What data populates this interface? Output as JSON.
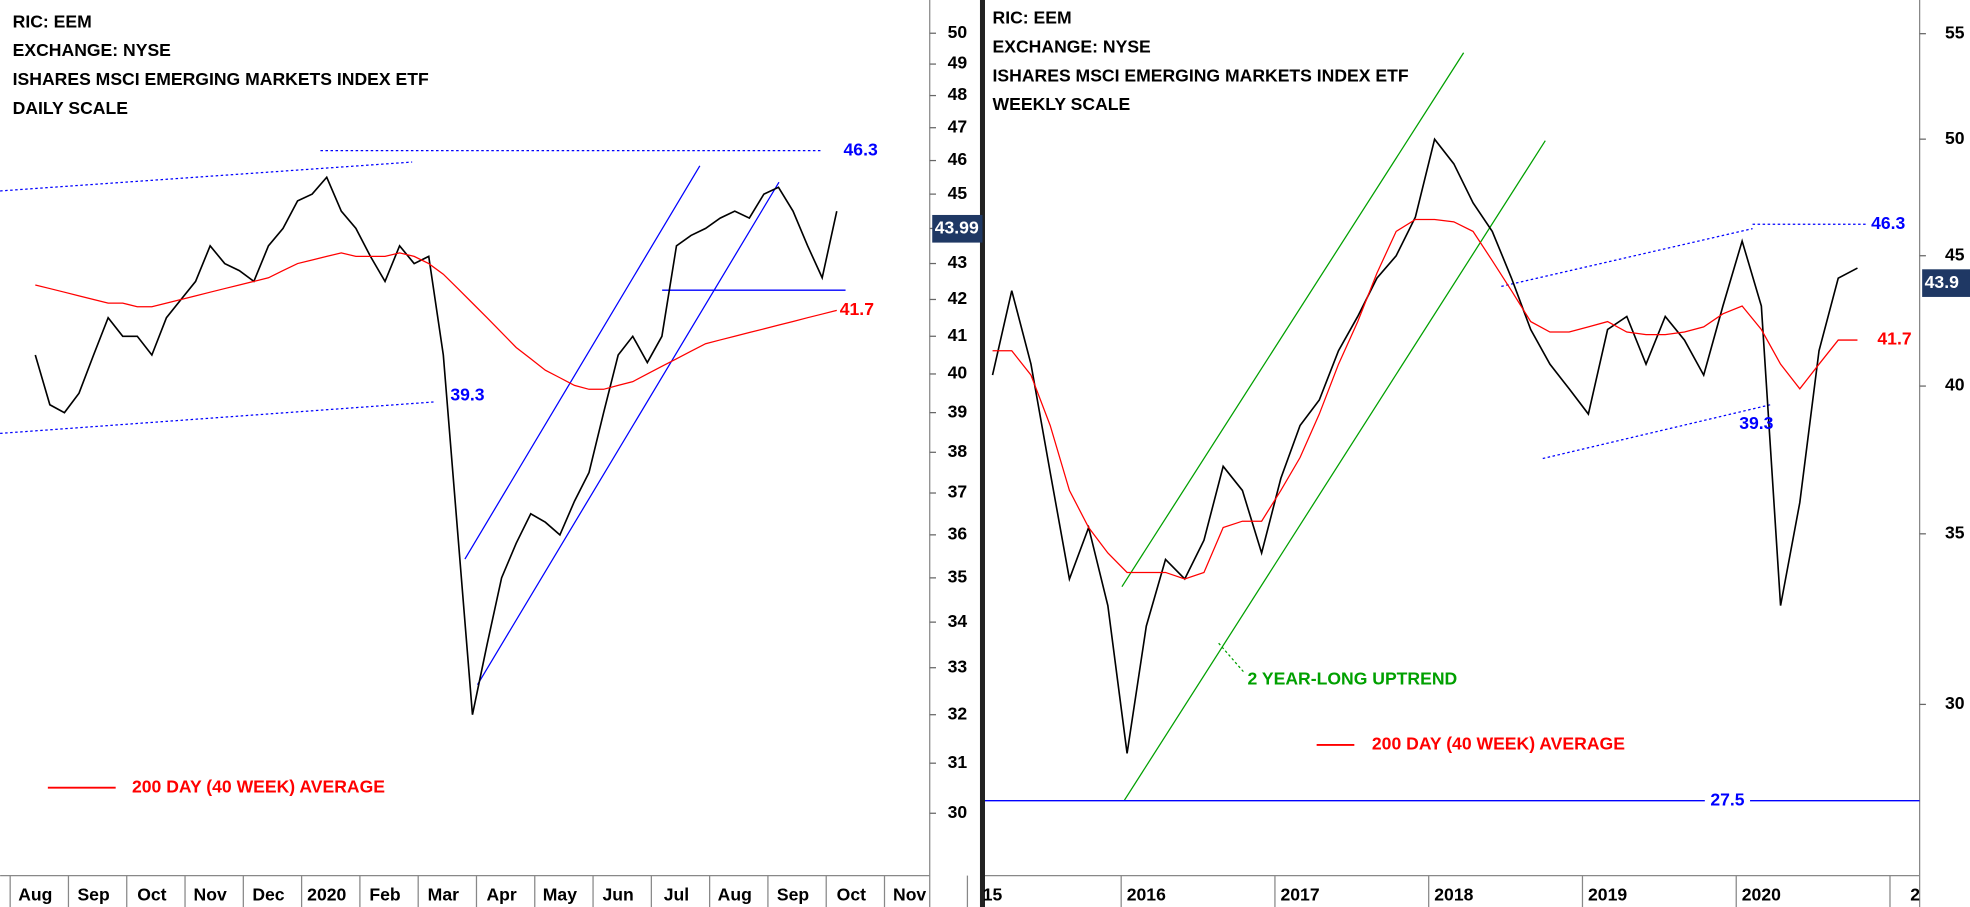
{
  "chart_data": [
    {
      "type": "line",
      "title_lines": [
        "RIC: EEM",
        "EXCHANGE: NYSE",
        "ISHARES MSCI EMERGING MARKETS INDEX ETF",
        "DAILY SCALE"
      ],
      "categories": [
        "Aug",
        null,
        null,
        null,
        "Sep",
        null,
        null,
        null,
        "Oct",
        null,
        null,
        null,
        "Nov",
        null,
        null,
        null,
        "Dec",
        null,
        null,
        null,
        "2020",
        null,
        null,
        null,
        "Feb",
        null,
        null,
        null,
        "Mar",
        null,
        null,
        null,
        "Apr",
        null,
        null,
        null,
        "May",
        null,
        null,
        null,
        "Jun",
        null,
        null,
        null,
        "Jul",
        null,
        null,
        null,
        "Aug",
        null,
        null,
        null,
        "Sep",
        null,
        null,
        null,
        "Oct",
        null,
        null,
        null,
        "Nov",
        null
      ],
      "series": [
        {
          "color": "#000000",
          "values": [
            40.5,
            39.2,
            39.0,
            39.5,
            40.5,
            41.5,
            41.0,
            41.0,
            40.5,
            41.5,
            42.0,
            42.5,
            43.5,
            43.0,
            42.8,
            42.5,
            43.5,
            44.0,
            44.8,
            45.0,
            45.5,
            44.5,
            44.0,
            43.2,
            42.5,
            43.5,
            43.0,
            43.2,
            40.5,
            36.0,
            32.0,
            33.5,
            35.0,
            35.8,
            36.5,
            36.3,
            36.0,
            36.8,
            37.5,
            39.0,
            40.5,
            41.0,
            40.3,
            41.0,
            43.5,
            43.8,
            44.0,
            44.3,
            44.5,
            44.3,
            45.0,
            45.2,
            44.5,
            43.5,
            42.6,
            44.5,
            null,
            null,
            null,
            null,
            null,
            null
          ]
        },
        {
          "name": "200 DAY (40 WEEK) AVERAGE",
          "color": "#ff0000",
          "values": [
            42.4,
            42.3,
            42.2,
            42.1,
            42.0,
            41.9,
            41.9,
            41.8,
            41.8,
            41.9,
            42.0,
            42.1,
            42.2,
            42.3,
            42.4,
            42.5,
            42.6,
            42.8,
            43.0,
            43.1,
            43.2,
            43.3,
            43.2,
            43.2,
            43.2,
            43.3,
            43.2,
            43.0,
            42.7,
            42.3,
            41.9,
            41.5,
            41.1,
            40.7,
            40.4,
            40.1,
            39.9,
            39.7,
            39.6,
            39.6,
            39.7,
            39.8,
            40.0,
            40.2,
            40.4,
            40.6,
            40.8,
            40.9,
            41.0,
            41.1,
            41.2,
            41.3,
            41.4,
            41.5,
            41.6,
            41.7,
            null,
            null,
            null,
            null,
            null,
            null
          ]
        }
      ],
      "ylim": [
        28.8,
        51.1
      ],
      "yticks": [
        30,
        31,
        32,
        33,
        34,
        35,
        36,
        37,
        38,
        39,
        40,
        41,
        42,
        43,
        44,
        45,
        46,
        47,
        48,
        49,
        50
      ],
      "log_scale": true,
      "last_price": 43.99,
      "levels": [
        {
          "value": 46.3,
          "color": "#0000ff"
        },
        {
          "value": 39.3,
          "color": "#0000ff"
        },
        {
          "value": 41.7,
          "color": "#ff0000"
        }
      ]
    },
    {
      "type": "line",
      "title_lines": [
        "RIC: EEM",
        "EXCHANGE: NYSE",
        "ISHARES MSCI EMERGING MARKETS INDEX ETF",
        "WEEKLY SCALE"
      ],
      "categories": [
        "15",
        null,
        null,
        null,
        null,
        null,
        null,
        null,
        "2016",
        null,
        null,
        null,
        null,
        null,
        null,
        null,
        "2017",
        null,
        null,
        null,
        null,
        null,
        null,
        null,
        "2018",
        null,
        null,
        null,
        null,
        null,
        null,
        null,
        "2019",
        null,
        null,
        null,
        null,
        null,
        null,
        null,
        "2020",
        null,
        null,
        null,
        null,
        null,
        null,
        null,
        "2"
      ],
      "series": [
        {
          "color": "#000000",
          "values": [
            40.4,
            43.6,
            40.8,
            37.0,
            33.6,
            35.2,
            32.8,
            28.7,
            32.2,
            34.2,
            33.6,
            34.8,
            37.2,
            36.4,
            34.4,
            36.8,
            38.6,
            39.5,
            41.3,
            42.6,
            44.1,
            45.0,
            46.6,
            50.0,
            48.9,
            47.2,
            46.0,
            44.1,
            42.1,
            40.8,
            39.9,
            39.0,
            42.1,
            42.6,
            40.8,
            42.6,
            41.7,
            40.4,
            43.0,
            45.6,
            43.0,
            32.8,
            36.0,
            41.3,
            44.1,
            44.5,
            null,
            null,
            null
          ]
        },
        {
          "name": "200 DAY (40 WEEK) AVERAGE",
          "color": "#ff0000",
          "values": [
            41.3,
            41.3,
            40.4,
            38.6,
            36.4,
            35.2,
            34.4,
            33.8,
            33.8,
            33.8,
            33.6,
            33.8,
            35.2,
            35.4,
            35.4,
            36.4,
            37.5,
            39.0,
            40.8,
            42.4,
            44.3,
            46.0,
            46.5,
            46.5,
            46.4,
            46.0,
            44.8,
            43.6,
            42.4,
            42.0,
            42.0,
            42.2,
            42.4,
            42.0,
            41.9,
            41.9,
            42.0,
            42.2,
            42.7,
            43.0,
            42.1,
            40.8,
            39.9,
            40.8,
            41.7,
            41.7,
            null,
            null,
            null
          ]
        }
      ],
      "ylim": [
        25.7,
        56.7
      ],
      "yticks": [
        30,
        35,
        40,
        45,
        50,
        55
      ],
      "log_scale": true,
      "last_price": 43.9,
      "levels": [
        {
          "value": 46.3,
          "color": "#0000ff"
        },
        {
          "value": 39.3,
          "color": "#0000ff"
        },
        {
          "value": 41.7,
          "color": "#ff0000"
        },
        {
          "value": 27.5,
          "color": "#0000ff"
        }
      ],
      "trend_note": "2 YEAR-LONG UPTREND"
    }
  ]
}
